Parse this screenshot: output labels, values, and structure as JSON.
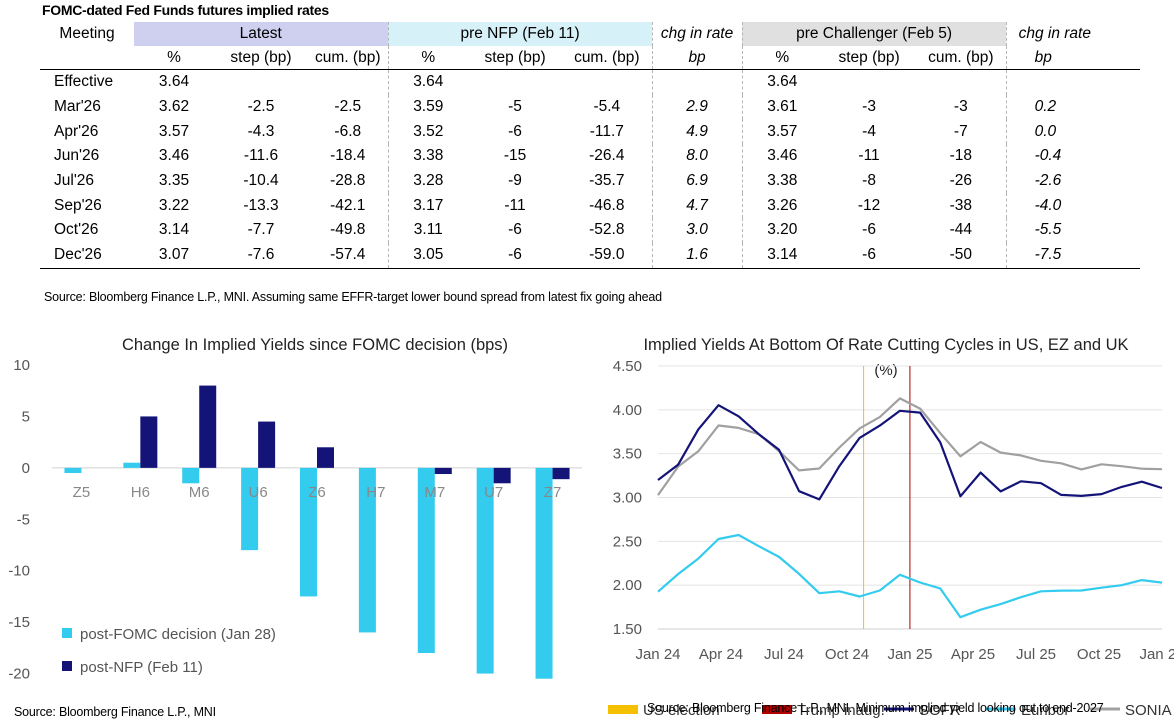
{
  "table": {
    "title": "FOMC-dated Fed Funds futures implied rates",
    "group_headers": [
      "Meeting",
      "Latest",
      "pre NFP (Feb 11)",
      "chg in rate",
      "pre Challenger (Feb 5)",
      "chg in rate"
    ],
    "sub_headers": [
      "",
      "%",
      "step (bp)",
      "cum. (bp)",
      "%",
      "step (bp)",
      "cum. (bp)",
      "bp",
      "%",
      "step (bp)",
      "cum. (bp)",
      "bp"
    ],
    "rows": [
      [
        "Effective",
        "3.64",
        "",
        "",
        "3.64",
        "",
        "",
        "",
        "3.64",
        "",
        "",
        ""
      ],
      [
        "Mar'26",
        "3.62",
        "-2.5",
        "-2.5",
        "3.59",
        "-5",
        "-5.4",
        "2.9",
        "3.61",
        "-3",
        "-3",
        "0.2"
      ],
      [
        "Apr'26",
        "3.57",
        "-4.3",
        "-6.8",
        "3.52",
        "-6",
        "-11.7",
        "4.9",
        "3.57",
        "-4",
        "-7",
        "0.0"
      ],
      [
        "Jun'26",
        "3.46",
        "-11.6",
        "-18.4",
        "3.38",
        "-15",
        "-26.4",
        "8.0",
        "3.46",
        "-11",
        "-18",
        "-0.4"
      ],
      [
        "Jul'26",
        "3.35",
        "-10.4",
        "-28.8",
        "3.28",
        "-9",
        "-35.7",
        "6.9",
        "3.38",
        "-8",
        "-26",
        "-2.6"
      ],
      [
        "Sep'26",
        "3.22",
        "-13.3",
        "-42.1",
        "3.17",
        "-11",
        "-46.8",
        "4.7",
        "3.26",
        "-12",
        "-38",
        "-4.0"
      ],
      [
        "Oct'26",
        "3.14",
        "-7.7",
        "-49.8",
        "3.11",
        "-6",
        "-52.8",
        "3.0",
        "3.20",
        "-6",
        "-44",
        "-5.5"
      ],
      [
        "Dec'26",
        "3.07",
        "-7.6",
        "-57.4",
        "3.05",
        "-6",
        "-59.0",
        "1.6",
        "3.14",
        "-6",
        "-50",
        "-7.5"
      ]
    ],
    "source": "Source: Bloomberg Finance L.P., MNI. Assuming same  EFFR-target lower bound spread from latest fix going ahead"
  },
  "chart_data": [
    {
      "type": "bar",
      "title": "Change In Implied Yields since FOMC decision (bps)",
      "categories": [
        "Z5",
        "H6",
        "M6",
        "U6",
        "Z6",
        "H7",
        "M7",
        "U7",
        "Z7"
      ],
      "series": [
        {
          "name": "post-FOMC decision (Jan 28)",
          "color": "#33ccee",
          "values": [
            -0.5,
            0.5,
            -1.5,
            -8,
            -12.5,
            -16,
            -18,
            -20,
            -20.5
          ]
        },
        {
          "name": "post-NFP (Feb 11)",
          "color": "#141478",
          "values": [
            0,
            5,
            8,
            4.5,
            2,
            0,
            -0.6,
            -1.5,
            -1.1
          ]
        }
      ],
      "ylim": [
        -25,
        10
      ],
      "yticks": [
        10,
        5,
        0,
        -5,
        -10,
        -15,
        -20,
        -25
      ],
      "legend": "bottom-left",
      "source": "Source: Bloomberg Finance L.P., MNI"
    },
    {
      "type": "line",
      "title": "Implied Yields At Bottom Of Rate Cutting Cycles in US, EZ and UK",
      "ylabel": "(%)",
      "ylim": [
        1.5,
        4.5
      ],
      "yticks": [
        "4.50",
        "4.00",
        "3.50",
        "3.00",
        "2.50",
        "2.00",
        "1.50"
      ],
      "xticks": [
        "Jan 24",
        "Apr 24",
        "Jul 24",
        "Oct 24",
        "Jan 25",
        "Apr 25",
        "Jul 25",
        "Oct 25",
        "Jan 26"
      ],
      "x": [
        "2024-01",
        "2024-02",
        "2024-03",
        "2024-04",
        "2024-05",
        "2024-06",
        "2024-07",
        "2024-08",
        "2024-09",
        "2024-10",
        "2024-11",
        "2024-12",
        "2025-01",
        "2025-02",
        "2025-03",
        "2025-04",
        "2025-05",
        "2025-06",
        "2025-07",
        "2025-08",
        "2025-09",
        "2025-10",
        "2025-11",
        "2025-12",
        "2026-01",
        "2026-02"
      ],
      "series": [
        {
          "name": "SOFR",
          "color": "#141478",
          "values": [
            3.2,
            3.35,
            3.75,
            4.05,
            3.95,
            3.75,
            3.55,
            3.05,
            2.95,
            3.35,
            3.7,
            3.85,
            4.0,
            3.95,
            3.6,
            3.0,
            3.3,
            3.1,
            3.2,
            3.15,
            3.0,
            3.0,
            3.05,
            3.15,
            3.2,
            3.1
          ]
        },
        {
          "name": "Euribor",
          "color": "#33ccee",
          "values": [
            1.9,
            2.1,
            2.3,
            2.55,
            2.6,
            2.45,
            2.3,
            2.1,
            1.9,
            1.95,
            1.9,
            1.95,
            2.1,
            2.0,
            1.95,
            1.65,
            1.75,
            1.8,
            1.85,
            1.9,
            1.92,
            1.95,
            2.0,
            2.02,
            2.05,
            2.0
          ]
        },
        {
          "name": "SONIA",
          "color": "#a0a0a0",
          "values": [
            3.0,
            3.35,
            3.55,
            3.85,
            3.8,
            3.7,
            3.5,
            3.3,
            3.35,
            3.6,
            3.8,
            3.9,
            4.1,
            4.0,
            3.75,
            3.5,
            3.65,
            3.5,
            3.45,
            3.4,
            3.4,
            3.35,
            3.4,
            3.35,
            3.3,
            3.3
          ]
        }
      ],
      "markers": [
        {
          "name": "US election",
          "x": "2024-11",
          "color": "#f5c000"
        },
        {
          "name": "Trump inaug.",
          "x": "2025-01",
          "color": "#b00000"
        }
      ],
      "legend": "bottom",
      "source": "Source: Bloomberg Finance L.P., MNI. Minimum implied yield looking out to end-2027"
    }
  ]
}
